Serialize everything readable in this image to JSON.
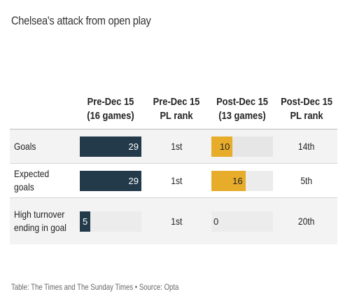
{
  "title": "Chelsea's attack from open play",
  "columns": {
    "metric": "",
    "pre": "Pre-Dec 15 (16 games)",
    "pre_rank": "Pre-Dec 15 PL rank",
    "post": "Post-Dec 15 (13 games)",
    "post_rank": "Post-Dec 15 PL rank"
  },
  "colors": {
    "pre": "#233a4a",
    "post": "#e6ac2a",
    "track": "#e8e8e8"
  },
  "chart_data": {
    "type": "table",
    "title": "Chelsea's attack from open play",
    "bar_max": 29,
    "rows": [
      {
        "metric": "Goals",
        "pre": 29,
        "pre_rank": "1st",
        "post": 10,
        "post_rank": "14th"
      },
      {
        "metric": "Expected goals",
        "pre": 29,
        "pre_rank": "1st",
        "post": 16,
        "post_rank": "5th"
      },
      {
        "metric": "High turnover ending in goal",
        "pre": 5,
        "pre_rank": "1st",
        "post": 0,
        "post_rank": "20th"
      }
    ]
  },
  "source": "Table: The Times and The Sunday Times • Source: Opta"
}
